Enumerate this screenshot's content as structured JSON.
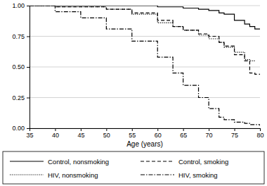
{
  "chart_data": {
    "type": "line",
    "x_label": "Age (years)",
    "x": [
      35,
      40,
      45,
      50,
      55,
      60,
      63,
      65,
      68,
      70,
      72,
      73,
      75,
      77,
      78,
      79,
      80
    ],
    "series": [
      {
        "name": "Control, nonsmoking",
        "color": "#000000",
        "line_style": "solid",
        "values": [
          1.0,
          1.0,
          1.0,
          1.0,
          1.0,
          0.99,
          0.99,
          0.98,
          0.97,
          0.96,
          0.94,
          0.93,
          0.88,
          0.85,
          0.83,
          0.81,
          0.81
        ]
      },
      {
        "name": "Control, smoking",
        "color": "#000000",
        "line_style": "dashed",
        "values": [
          1.0,
          0.99,
          0.99,
          0.97,
          0.94,
          0.88,
          0.83,
          0.8,
          0.77,
          0.75,
          0.7,
          0.67,
          0.6,
          0.55,
          0.45,
          0.44,
          0.44
        ]
      },
      {
        "name": "HIV, nonsmoking",
        "color": "#000000",
        "line_style": "dotted",
        "values": [
          1.0,
          0.99,
          0.99,
          0.97,
          0.93,
          0.86,
          0.83,
          0.8,
          0.76,
          0.73,
          0.7,
          0.66,
          0.62,
          0.56,
          0.55,
          0.55,
          null
        ]
      },
      {
        "name": "HIV, smoking",
        "color": "#000000",
        "line_style": "dashdot",
        "values": [
          1.0,
          0.95,
          0.9,
          0.81,
          0.71,
          0.58,
          0.45,
          0.35,
          0.25,
          0.16,
          0.09,
          0.07,
          0.05,
          0.04,
          0.03,
          0.03,
          0.02
        ]
      }
    ],
    "xlim": [
      35,
      80
    ],
    "xticks": [
      35,
      40,
      45,
      50,
      55,
      60,
      65,
      70,
      75,
      80
    ],
    "ylim": [
      0,
      1
    ],
    "yticks": [
      {
        "value": 0,
        "label": "0.00"
      },
      {
        "value": 0.25,
        "label": "0.25"
      },
      {
        "value": 0.5,
        "label": "0.50"
      },
      {
        "value": 0.75,
        "label": "0.75"
      },
      {
        "value": 1,
        "label": "1.00"
      }
    ],
    "grid": true,
    "legend": "bottom"
  }
}
